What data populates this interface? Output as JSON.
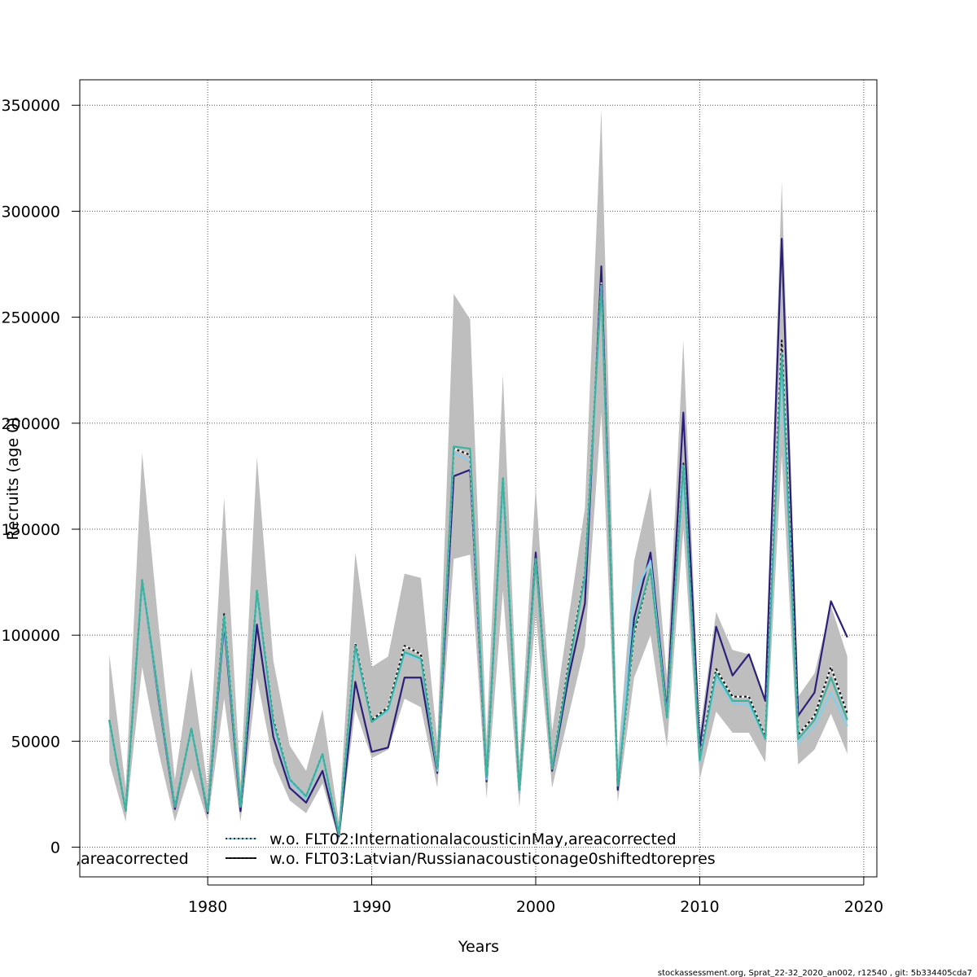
{
  "chart_data": {
    "type": "line",
    "xlabel": "Years",
    "ylabel": "Recruits (age 0)",
    "xlim": [
      1972.2,
      2020.8
    ],
    "ylim": [
      -14000,
      362000
    ],
    "x_ticks": [
      1980,
      1990,
      2000,
      2010,
      2020
    ],
    "y_ticks": [
      0,
      50000,
      100000,
      150000,
      200000,
      250000,
      300000,
      350000
    ],
    "grid": true,
    "legend_position": "bottom",
    "legend_labels": [
      "w.o. FLT02:InternationalacousticinMay,areacorrected",
      "w.o. FLT03:Latvian/Russianacousticonage0shiftedtorepres"
    ],
    "legend_clipped_label": ",areacorrected",
    "footer": "stockassessment.org, Sprat_22-32_2020_an002, r12540 , git: 5b334405cda7",
    "x": [
      1974,
      1975,
      1976,
      1977,
      1978,
      1979,
      1980,
      1981,
      1982,
      1983,
      1984,
      1985,
      1986,
      1987,
      1988,
      1989,
      1990,
      1991,
      1992,
      1993,
      1994,
      1995,
      1996,
      1997,
      1998,
      1999,
      2000,
      2001,
      2002,
      2003,
      2004,
      2005,
      2006,
      2007,
      2008,
      2009,
      2010,
      2011,
      2012,
      2013,
      2014,
      2015,
      2016,
      2017,
      2018,
      2019
    ],
    "band": {
      "color": "#bebebe",
      "lower": [
        40000,
        12000,
        85000,
        45000,
        12000,
        37000,
        12000,
        70000,
        12000,
        80000,
        40000,
        22000,
        16000,
        30000,
        3000,
        65000,
        42000,
        46000,
        70000,
        66000,
        28000,
        136000,
        138000,
        23000,
        121000,
        19000,
        110000,
        28000,
        62000,
        95000,
        205000,
        21000,
        80000,
        100000,
        47000,
        150000,
        32000,
        64000,
        54000,
        54000,
        40000,
        185000,
        39000,
        46000,
        63000,
        44000
      ],
      "upper": [
        91000,
        28000,
        186000,
        105000,
        32000,
        85000,
        28000,
        165000,
        30000,
        184000,
        88000,
        48000,
        36000,
        65000,
        12000,
        139000,
        85000,
        90000,
        129000,
        127000,
        50000,
        261000,
        249000,
        51000,
        223000,
        40000,
        170000,
        55000,
        108000,
        160000,
        348000,
        41000,
        135000,
        170000,
        80000,
        239000,
        54000,
        111000,
        93000,
        91000,
        68000,
        314000,
        71000,
        82000,
        114000,
        90000
      ]
    },
    "series": [
      {
        "color": "#2b1f7a",
        "values": [
          60000,
          17000,
          125000,
          70000,
          18000,
          56000,
          16000,
          105000,
          17000,
          105000,
          52000,
          28000,
          21000,
          36000,
          5000,
          78000,
          45000,
          47000,
          80000,
          80000,
          35000,
          175000,
          178000,
          31000,
          173000,
          26000,
          139000,
          36000,
          80000,
          115000,
          274000,
          27000,
          108000,
          139000,
          64000,
          205000,
          47000,
          104000,
          81000,
          91000,
          69000,
          287000,
          62000,
          73000,
          116000,
          99000
        ]
      },
      {
        "name": "w.o. FLT02:InternationalacousticinMay,areacorrected",
        "color": "#87ceeb",
        "values": [
          59000,
          17000,
          124000,
          71000,
          19000,
          55000,
          17000,
          107000,
          19000,
          119000,
          58000,
          31000,
          23000,
          43000,
          6000,
          93000,
          59000,
          64000,
          91000,
          88000,
          36000,
          186000,
          182000,
          32000,
          171000,
          26000,
          136000,
          37000,
          85000,
          127000,
          263000,
          29000,
          119000,
          135000,
          62000,
          175000,
          40000,
          80000,
          68000,
          67000,
          51000,
          225000,
          49000,
          57000,
          73000,
          57000
        ]
      },
      {
        "name": "w.o. FLT03:Latvian/Russianacousticonage0shiftedtorepres",
        "color": "#1a1a1a",
        "dashed": true,
        "values": [
          60000,
          17000,
          126000,
          72000,
          19000,
          56000,
          17000,
          110000,
          19000,
          121000,
          60000,
          32000,
          24000,
          44000,
          6000,
          96000,
          60000,
          66000,
          95000,
          91000,
          37000,
          188000,
          185000,
          33000,
          174000,
          27000,
          136000,
          37000,
          86000,
          129000,
          266000,
          29000,
          101000,
          131000,
          61000,
          181000,
          42000,
          84000,
          71000,
          71000,
          52000,
          239000,
          53000,
          62000,
          85000,
          63000
        ]
      },
      {
        "color": "#3cb3a0",
        "values": [
          60000,
          17000,
          126000,
          72000,
          19000,
          56000,
          17000,
          109000,
          19000,
          121000,
          59000,
          32000,
          24000,
          44000,
          6000,
          95000,
          59000,
          65000,
          92000,
          89000,
          37000,
          189000,
          188000,
          33000,
          174000,
          27000,
          136000,
          37000,
          84000,
          128000,
          265000,
          29000,
          103000,
          131000,
          61000,
          180000,
          41000,
          82000,
          69000,
          69000,
          51000,
          233000,
          51000,
          60000,
          80000,
          60000
        ]
      }
    ]
  }
}
